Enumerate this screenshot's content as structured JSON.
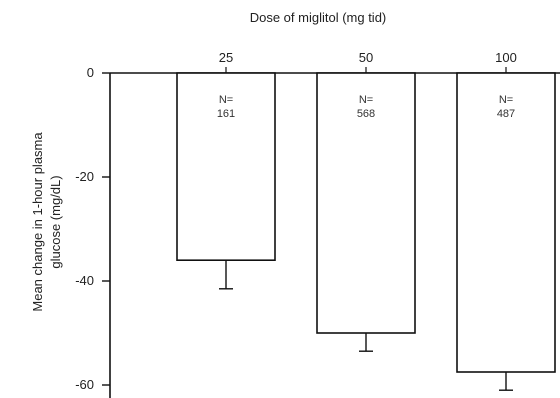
{
  "chart_data": {
    "type": "bar",
    "title": "",
    "xlabel": "Dose of miglitol (mg tid)",
    "ylabel_line1": "Mean change in 1-hour plasma",
    "ylabel_line2": "glucose (mg/dL)",
    "x_axis_position": "top",
    "categories": [
      "25",
      "50",
      "100"
    ],
    "values": [
      -36,
      -50,
      -57.5
    ],
    "error_bars": [
      5.5,
      3.5,
      3.5
    ],
    "n_labels": [
      {
        "prefix": "N=",
        "count": "161"
      },
      {
        "prefix": "N=",
        "count": "568"
      },
      {
        "prefix": "N=",
        "count": "487"
      }
    ],
    "yticks": [
      0,
      -20,
      -40,
      -60
    ],
    "yticks_labels": [
      "0",
      "-20",
      "-40",
      "-60"
    ],
    "ylim": [
      -64,
      0
    ],
    "grid": false,
    "bar_color": "#ffffff",
    "line_color": "#111111"
  }
}
